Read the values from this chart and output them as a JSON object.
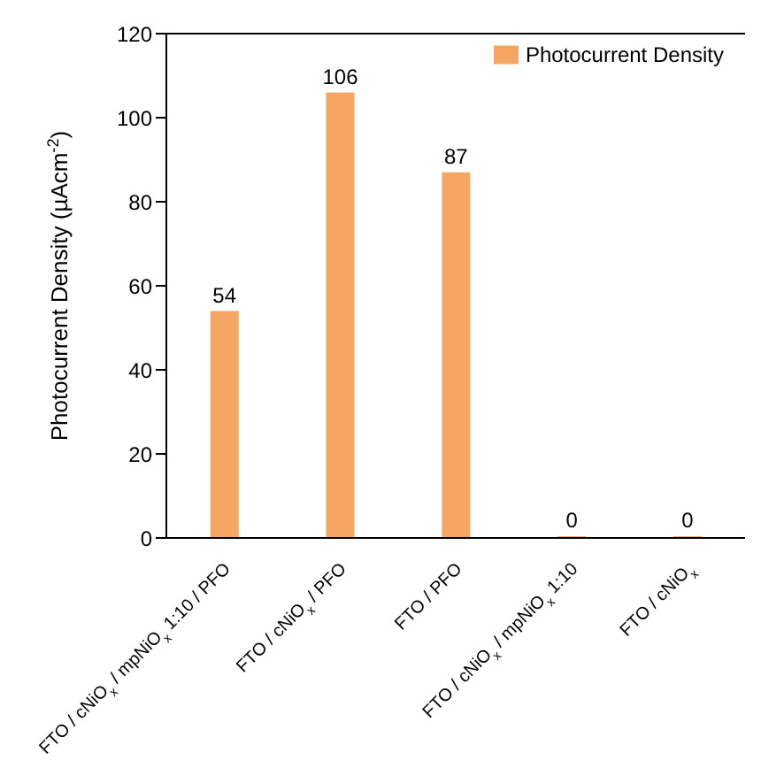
{
  "chart_data": {
    "type": "bar",
    "categories": [
      "FTO / cNiO$_{x}$ / mpNiO$_{x}$ 1:10 / PFO",
      "FTO / cNiO$_{x}$ / PFO",
      "FTO / PFO",
      "FTO / cNiO$_{x}$ / mpNiO$_{x}$ 1:10",
      "FTO / cNiO$_{x}$"
    ],
    "series": [
      {
        "name": "Photocurrent Density",
        "color": "#f4a662",
        "values": [
          54,
          106,
          87,
          0,
          0
        ]
      }
    ],
    "ylabel": "Photocurrent Density (µAcm$^{-2}$)",
    "ylim": [
      0,
      120
    ],
    "yticks": [
      0,
      20,
      40,
      60,
      80,
      100,
      120
    ],
    "data_labels": true,
    "legend": "top right"
  }
}
